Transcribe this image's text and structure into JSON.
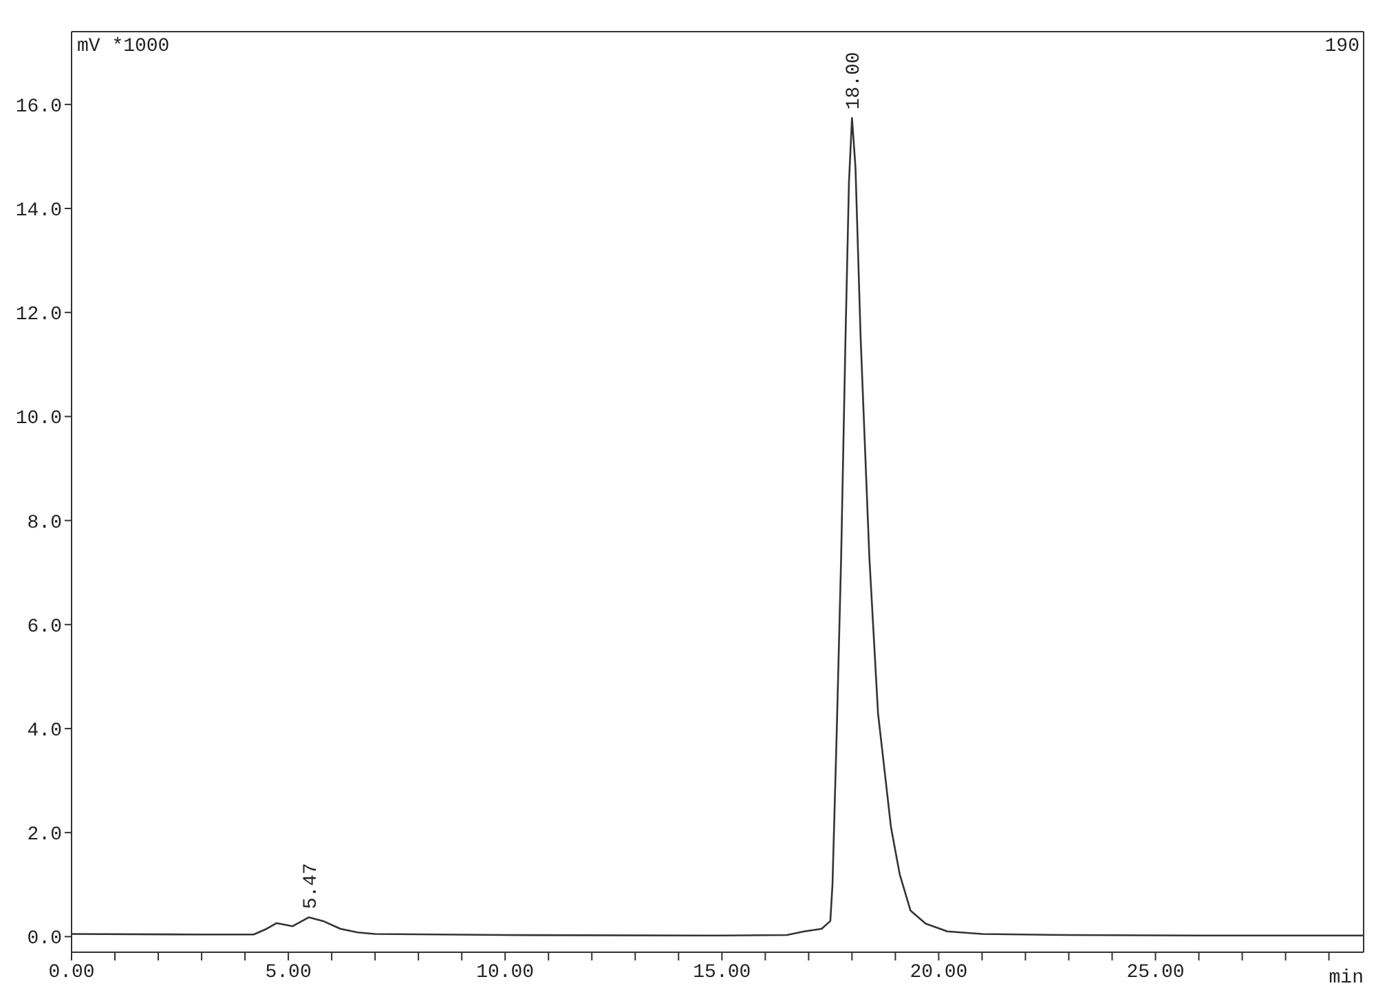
{
  "chart_data": {
    "type": "line",
    "ylabel": "mV *1000",
    "xlabel": "min",
    "annotations": [
      {
        "text": "5.47",
        "x": 5.47,
        "y": 0.37
      },
      {
        "text": "18.00",
        "x": 18.0,
        "y": 15.74
      },
      "190"
    ],
    "x": [
      0,
      3,
      4.2,
      4.5,
      4.73,
      5.1,
      5.47,
      5.8,
      6.2,
      6.6,
      7,
      10,
      15,
      16.5,
      16.9,
      17.3,
      17.5,
      17.55,
      17.65,
      17.75,
      17.85,
      17.93,
      18.0,
      18.08,
      18.2,
      18.4,
      18.6,
      18.9,
      19.1,
      19.35,
      19.7,
      20.2,
      21,
      23,
      26,
      29.8
    ],
    "series": [
      {
        "color": "#333333",
        "values": [
          0.05,
          0.04,
          0.04,
          0.15,
          0.26,
          0.2,
          0.37,
          0.3,
          0.15,
          0.08,
          0.05,
          0.03,
          0.02,
          0.03,
          0.1,
          0.15,
          0.3,
          1.0,
          4.0,
          7.3,
          11.5,
          14.5,
          15.74,
          14.8,
          11.5,
          7.3,
          4.3,
          2.1,
          1.2,
          0.5,
          0.25,
          0.1,
          0.05,
          0.03,
          0.02,
          0.02
        ]
      }
    ],
    "xlim": [
      0,
      29.8
    ],
    "xticks": [
      {
        "value": 0,
        "label": "0.00"
      },
      {
        "value": 1,
        "label": null
      },
      {
        "value": 2,
        "label": null
      },
      {
        "value": 3,
        "label": null
      },
      {
        "value": 4,
        "label": null
      },
      {
        "value": 5,
        "label": "5.00"
      },
      {
        "value": 6,
        "label": null
      },
      {
        "value": 7,
        "label": null
      },
      {
        "value": 8,
        "label": null
      },
      {
        "value": 9,
        "label": null
      },
      {
        "value": 10,
        "label": "10.00"
      },
      {
        "value": 11,
        "label": null
      },
      {
        "value": 12,
        "label": null
      },
      {
        "value": 13,
        "label": null
      },
      {
        "value": 14,
        "label": null
      },
      {
        "value": 15,
        "label": "15.00"
      },
      {
        "value": 16,
        "label": null
      },
      {
        "value": 17,
        "label": null
      },
      {
        "value": 18,
        "label": null
      },
      {
        "value": 19,
        "label": null
      },
      {
        "value": 20,
        "label": "20.00"
      },
      {
        "value": 21,
        "label": null
      },
      {
        "value": 22,
        "label": null
      },
      {
        "value": 23,
        "label": null
      },
      {
        "value": 24,
        "label": null
      },
      {
        "value": 25,
        "label": "25.00"
      },
      {
        "value": 26,
        "label": null
      },
      {
        "value": 27,
        "label": null
      },
      {
        "value": 28,
        "label": null
      },
      {
        "value": 29,
        "label": null
      }
    ],
    "ylim": [
      -0.3,
      17.4
    ],
    "yticks": [
      {
        "value": 0,
        "label": "0.0"
      },
      {
        "value": 2,
        "label": "2.0"
      },
      {
        "value": 4,
        "label": "4.0"
      },
      {
        "value": 6,
        "label": "6.0"
      },
      {
        "value": 8,
        "label": "8.0"
      },
      {
        "value": 10,
        "label": "10.0"
      },
      {
        "value": 12,
        "label": "12.0"
      },
      {
        "value": 14,
        "label": "14.0"
      },
      {
        "value": 16,
        "label": "16.0"
      }
    ],
    "grid": false,
    "legend": false,
    "marker": "none",
    "line_style": "solid"
  }
}
